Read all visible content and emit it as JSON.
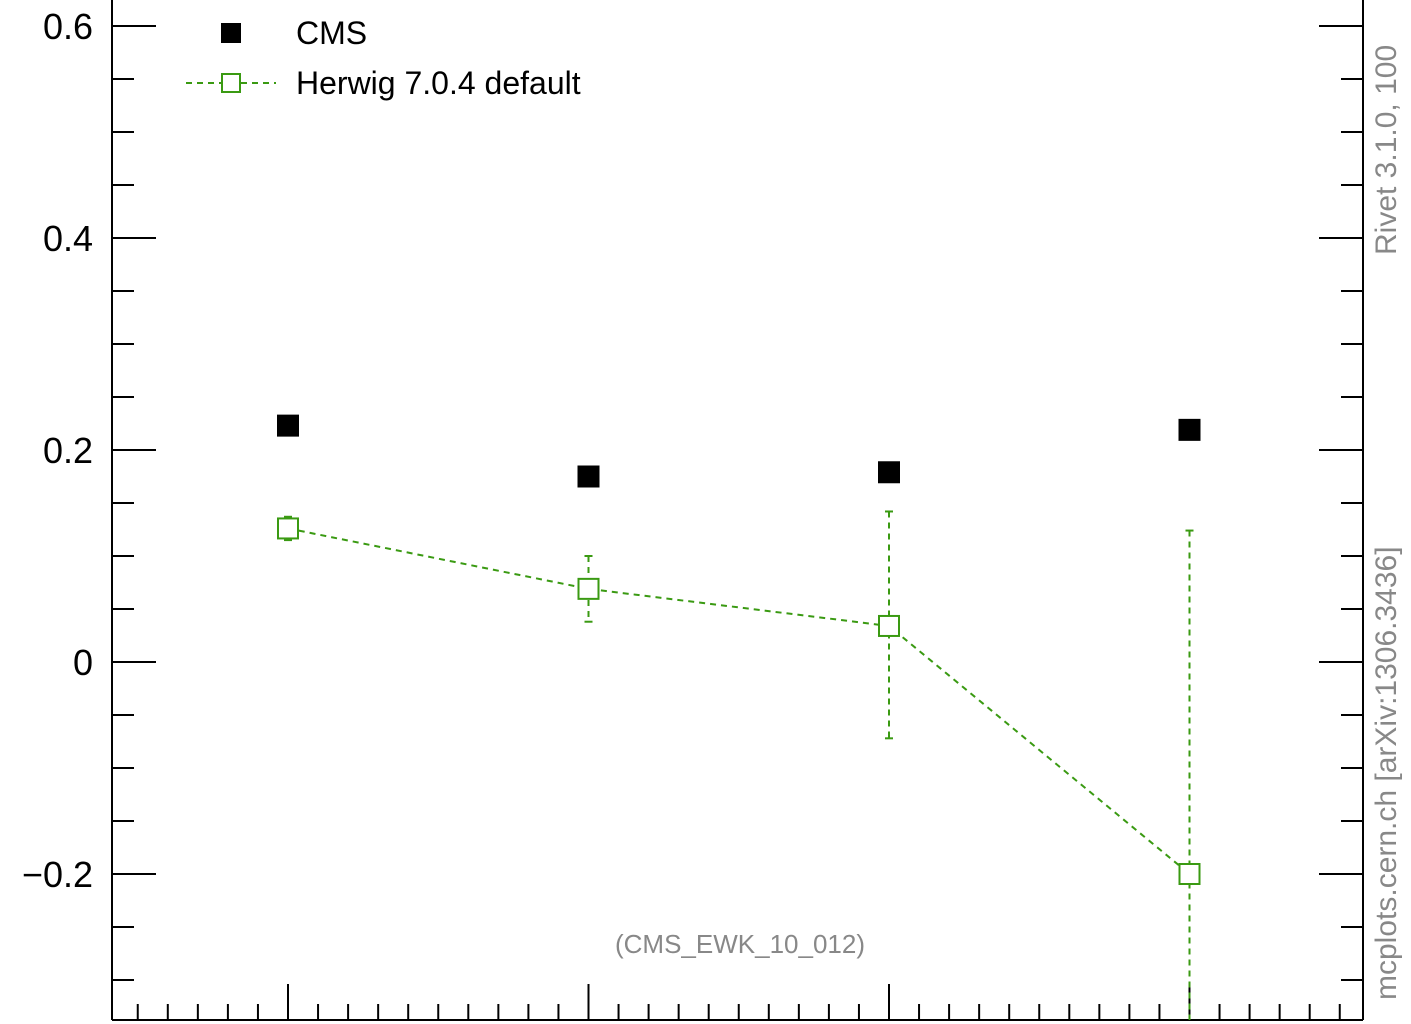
{
  "chart_data": {
    "type": "scatter",
    "title": "",
    "xlabel": "",
    "ylabel": "",
    "ylim": [
      -0.33,
      0.65
    ],
    "yticks": [
      -0.2,
      0,
      0.2,
      0.4,
      0.6
    ],
    "ytick_labels": [
      "−0.2",
      "0",
      "0.2",
      "0.4",
      "0.6"
    ],
    "grid": false,
    "legend_position": "top-left",
    "x": [
      1,
      2,
      3,
      4
    ],
    "series": [
      {
        "name": "CMS",
        "marker": "filled-square",
        "color": "#000000",
        "values": [
          0.223,
          0.175,
          0.179,
          0.219
        ]
      },
      {
        "name": "Herwig 7.0.4 default",
        "marker": "open-square",
        "line": "dashed",
        "color": "#3a9a12",
        "values": [
          0.126,
          0.069,
          0.034,
          -0.2
        ],
        "err_low": [
          0.011,
          0.031,
          0.106,
          0.15
        ],
        "err_high": [
          0.011,
          0.031,
          0.108,
          0.324
        ]
      }
    ],
    "annotations": {
      "analysis_id": "(CMS_EWK_10_012)",
      "side_top": "Rivet 3.1.0,  100",
      "side_bottom": "mcplots.cern.ch [arXiv:1306.3436]"
    }
  }
}
